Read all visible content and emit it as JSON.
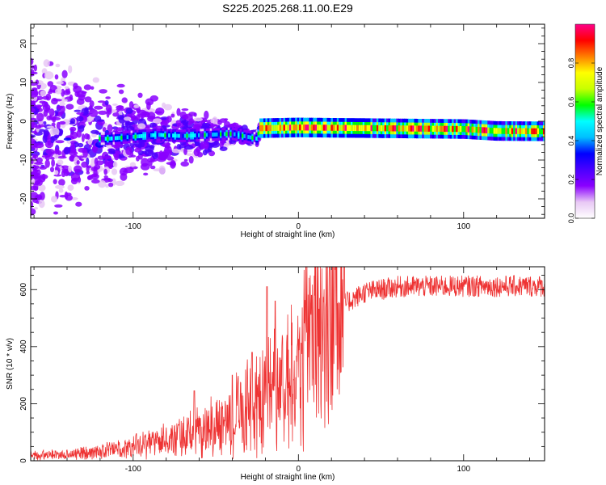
{
  "title": "S225.2025.268.11.00.E29",
  "chart_data": [
    {
      "type": "heatmap",
      "xlabel": "Height of straight line (km)",
      "ylabel": "Frequency (Hz)",
      "xlim": [
        -162,
        149
      ],
      "ylim": [
        -25,
        25
      ],
      "xticks": [
        -100,
        0,
        100
      ],
      "yticks": [
        -20,
        -10,
        0,
        10,
        20
      ],
      "ridge": [
        {
          "x": -115,
          "f": -4.5
        },
        {
          "x": -100,
          "f": -4.0
        },
        {
          "x": -85,
          "f": -3.5
        },
        {
          "x": -70,
          "f": -3.8
        },
        {
          "x": -55,
          "f": -3.5
        },
        {
          "x": -40,
          "f": -3.2
        },
        {
          "x": -25,
          "f": -4.5
        },
        {
          "x": -23,
          "f": -1.8
        },
        {
          "x": 0,
          "f": -1.6
        },
        {
          "x": 50,
          "f": -1.8
        },
        {
          "x": 100,
          "f": -2.0
        },
        {
          "x": 120,
          "f": -2.5
        },
        {
          "x": 149,
          "f": -2.6
        }
      ],
      "colorbar": {
        "label": "Normalized spectral amplitude",
        "range": [
          0,
          1
        ],
        "ticks": [
          "0.0",
          "0.2",
          "0.4",
          "0.6",
          "0.8"
        ],
        "colormap": [
          "#ffffff",
          "#e8c8f5",
          "#8a00ff",
          "#4a00ff",
          "#0000ff",
          "#00bfff",
          "#00ffff",
          "#00ff00",
          "#c8ff00",
          "#ffff00",
          "#ff8000",
          "#ff0000",
          "#ff0088"
        ]
      }
    },
    {
      "type": "line",
      "xlabel": "Height of straight line (km)",
      "ylabel": "SNR (10 * v/v)",
      "xlim": [
        -162,
        149
      ],
      "ylim": [
        0,
        680
      ],
      "xticks": [
        -100,
        0,
        100
      ],
      "yticks": [
        0,
        200,
        400,
        600
      ],
      "series": [
        {
          "name": "SNR",
          "color": "#ee3333",
          "trend": [
            {
              "x": -162,
              "y": 18
            },
            {
              "x": -140,
              "y": 22
            },
            {
              "x": -120,
              "y": 32
            },
            {
              "x": -100,
              "y": 48
            },
            {
              "x": -80,
              "y": 70
            },
            {
              "x": -60,
              "y": 100
            },
            {
              "x": -45,
              "y": 140
            },
            {
              "x": -30,
              "y": 190
            },
            {
              "x": -15,
              "y": 255
            },
            {
              "x": -5,
              "y": 320
            },
            {
              "x": 5,
              "y": 390
            },
            {
              "x": 15,
              "y": 470
            },
            {
              "x": 25,
              "y": 540
            },
            {
              "x": 40,
              "y": 590
            },
            {
              "x": 60,
              "y": 610
            },
            {
              "x": 100,
              "y": 612
            },
            {
              "x": 149,
              "y": 612
            }
          ],
          "peaks": [
            {
              "x": -63,
              "y": 245
            },
            {
              "x": -40,
              "y": 300
            },
            {
              "x": -28,
              "y": 380
            },
            {
              "x": -19,
              "y": 610
            },
            {
              "x": -14,
              "y": 560
            },
            {
              "x": 8,
              "y": 580
            }
          ]
        }
      ]
    }
  ]
}
